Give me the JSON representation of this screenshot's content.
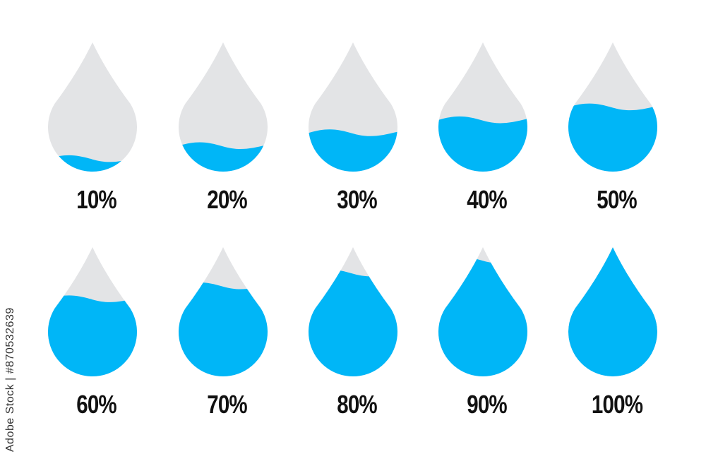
{
  "colors": {
    "water": "#00b6f7",
    "empty": "#e3e4e6",
    "label": "#111111"
  },
  "drops": [
    {
      "label": "10%",
      "fill_percent": 10
    },
    {
      "label": "20%",
      "fill_percent": 20
    },
    {
      "label": "30%",
      "fill_percent": 30
    },
    {
      "label": "40%",
      "fill_percent": 40
    },
    {
      "label": "50%",
      "fill_percent": 50
    },
    {
      "label": "60%",
      "fill_percent": 60
    },
    {
      "label": "70%",
      "fill_percent": 70
    },
    {
      "label": "80%",
      "fill_percent": 80
    },
    {
      "label": "90%",
      "fill_percent": 90
    },
    {
      "label": "100%",
      "fill_percent": 100
    }
  ],
  "credit": "Adobe Stock | #870532639"
}
